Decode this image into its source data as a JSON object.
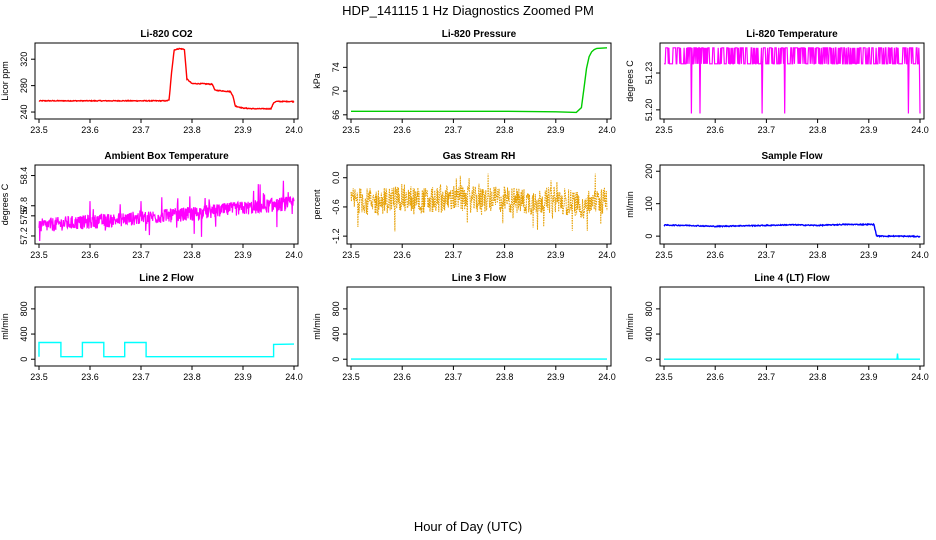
{
  "figure": {
    "title": "HDP_141115  1 Hz Diagnostics Zoomed PM",
    "xlabel": "Hour of Day (UTC)"
  },
  "chart_data": [
    {
      "type": "line",
      "title": "Li-820 CO2",
      "ylabel": "Licor ppm",
      "xlim": [
        23.5,
        24.0
      ],
      "xticks": [
        "23.5",
        "23.6",
        "23.7",
        "23.8",
        "23.9",
        "24.0"
      ],
      "ylim": [
        234,
        340
      ],
      "yticks": [
        "240",
        "280",
        "320"
      ],
      "color": "#ff0000",
      "x": [
        23.5,
        23.75,
        23.755,
        23.76,
        23.765,
        23.775,
        23.785,
        23.79,
        23.8,
        23.82,
        23.84,
        23.845,
        23.86,
        23.875,
        23.88,
        23.885,
        23.9,
        23.92,
        23.94,
        23.955,
        23.96,
        23.965,
        24.0
      ],
      "y": [
        257,
        257,
        258,
        300,
        334,
        336,
        335,
        290,
        283,
        283,
        282,
        273,
        272,
        271,
        265,
        249,
        246,
        245,
        245,
        245,
        254,
        256,
        256
      ]
    },
    {
      "type": "line",
      "title": "Li-820 Pressure",
      "ylabel": "kPa",
      "xlim": [
        23.5,
        24.0
      ],
      "xticks": [
        "23.5",
        "23.6",
        "23.7",
        "23.8",
        "23.9",
        "24.0"
      ],
      "ylim": [
        65.8,
        77.6
      ],
      "yticks": [
        "66",
        "70",
        "74"
      ],
      "color": "#00cc00",
      "x": [
        23.5,
        23.6,
        23.7,
        23.8,
        23.9,
        23.94,
        23.95,
        23.955,
        23.96,
        23.965,
        23.97,
        23.975,
        23.98,
        24.0
      ],
      "y": [
        66.6,
        66.6,
        66.6,
        66.6,
        66.5,
        66.4,
        67.2,
        70.5,
        73.8,
        75.8,
        76.6,
        77.0,
        77.2,
        77.3
      ]
    },
    {
      "type": "line",
      "title": "Li-820 Temperature",
      "ylabel": "degrees C",
      "xlim": [
        23.5,
        24.0
      ],
      "xticks": [
        "23.5",
        "23.6",
        "23.7",
        "23.8",
        "23.9",
        "24.0"
      ],
      "ylim": [
        51.195,
        51.252
      ],
      "yticks": [
        "51.20",
        "51.23"
      ],
      "color": "#ff00ff",
      "x": [
        23.5,
        23.52,
        23.54,
        23.6,
        23.65,
        23.7,
        23.76,
        23.78,
        23.8,
        23.85,
        23.91,
        23.95,
        24.0
      ],
      "y": [
        51.238,
        51.24,
        51.236,
        51.238,
        51.241,
        51.237,
        51.239,
        51.236,
        51.24,
        51.238,
        51.237,
        51.239,
        51.238
      ]
    },
    {
      "type": "line",
      "title": "Ambient Box Temperature",
      "ylabel": "degrees C",
      "xlim": [
        23.5,
        24.0
      ],
      "xticks": [
        "23.5",
        "23.6",
        "23.7",
        "23.8",
        "23.9",
        "24.0"
      ],
      "ylim": [
        57.1,
        58.55
      ],
      "yticks": [
        "57.2",
        "57.6",
        "57.8",
        "58.4"
      ],
      "color": "#ff00ff",
      "x": [
        23.5,
        23.55,
        23.6,
        23.65,
        23.7,
        23.75,
        23.8,
        23.85,
        23.9,
        23.95,
        24.0
      ],
      "y": [
        57.4,
        57.45,
        57.48,
        57.52,
        57.56,
        57.6,
        57.64,
        57.7,
        57.75,
        57.8,
        57.85
      ]
    },
    {
      "type": "line",
      "title": "Gas Stream RH",
      "ylabel": "percent",
      "xlim": [
        23.5,
        24.0
      ],
      "xticks": [
        "23.5",
        "23.6",
        "23.7",
        "23.8",
        "23.9",
        "24.0"
      ],
      "ylim": [
        -1.3,
        0.2
      ],
      "yticks": [
        "0.0",
        "-0.6",
        "-1.2"
      ],
      "color": "#e69f00",
      "x": [
        23.5,
        23.55,
        23.6,
        23.65,
        23.7,
        23.75,
        23.8,
        23.85,
        23.9,
        23.95,
        24.0
      ],
      "y": [
        -0.45,
        -0.5,
        -0.4,
        -0.48,
        -0.42,
        -0.46,
        -0.44,
        -0.5,
        -0.45,
        -0.55,
        -0.45
      ]
    },
    {
      "type": "line",
      "title": "Sample Flow",
      "ylabel": "ml/min",
      "xlim": [
        23.5,
        24.0
      ],
      "xticks": [
        "23.5",
        "23.6",
        "23.7",
        "23.8",
        "23.9",
        "24.0"
      ],
      "ylim": [
        -15,
        210
      ],
      "yticks": [
        "0",
        "100",
        "200"
      ],
      "color": "#0000ff",
      "x": [
        23.5,
        23.55,
        23.6,
        23.65,
        23.7,
        23.75,
        23.8,
        23.85,
        23.88,
        23.9,
        23.91,
        23.915,
        23.92,
        23.95,
        24.0
      ],
      "y": [
        34,
        33,
        30,
        32,
        33,
        35,
        33,
        36,
        36,
        36,
        36,
        2,
        0,
        0,
        -1
      ]
    },
    {
      "type": "line",
      "title": "Line 2 Flow",
      "ylabel": "ml/min",
      "xlim": [
        23.5,
        24.0
      ],
      "xticks": [
        "23.5",
        "23.6",
        "23.7",
        "23.8",
        "23.9",
        "24.0"
      ],
      "ylim": [
        -60,
        1100
      ],
      "yticks": [
        "0",
        "400",
        "800"
      ],
      "color": "#00ffff",
      "x": [
        23.5,
        23.5,
        23.543,
        23.543,
        23.585,
        23.585,
        23.627,
        23.627,
        23.668,
        23.668,
        23.71,
        23.71,
        23.96,
        23.96,
        24.0
      ],
      "y": [
        40,
        265,
        265,
        40,
        40,
        265,
        265,
        40,
        40,
        265,
        265,
        40,
        40,
        235,
        240
      ]
    },
    {
      "type": "line",
      "title": "Line 3 Flow",
      "ylabel": "ml/min",
      "xlim": [
        23.5,
        24.0
      ],
      "xticks": [
        "23.5",
        "23.6",
        "23.7",
        "23.8",
        "23.9",
        "24.0"
      ],
      "ylim": [
        -60,
        1100
      ],
      "yticks": [
        "0",
        "400",
        "800"
      ],
      "color": "#00ffff",
      "x": [
        23.5,
        24.0
      ],
      "y": [
        2,
        2
      ]
    },
    {
      "type": "line",
      "title": "Line 4 (LT) Flow",
      "ylabel": "ml/min",
      "xlim": [
        23.5,
        24.0
      ],
      "xticks": [
        "23.5",
        "23.6",
        "23.7",
        "23.8",
        "23.9",
        "24.0"
      ],
      "ylim": [
        -60,
        1100
      ],
      "yticks": [
        "0",
        "400",
        "800"
      ],
      "color": "#00ffff",
      "x": [
        23.5,
        23.955,
        23.956,
        23.957,
        23.958,
        24.0
      ],
      "y": [
        0,
        0,
        90,
        0,
        0,
        0
      ]
    }
  ]
}
